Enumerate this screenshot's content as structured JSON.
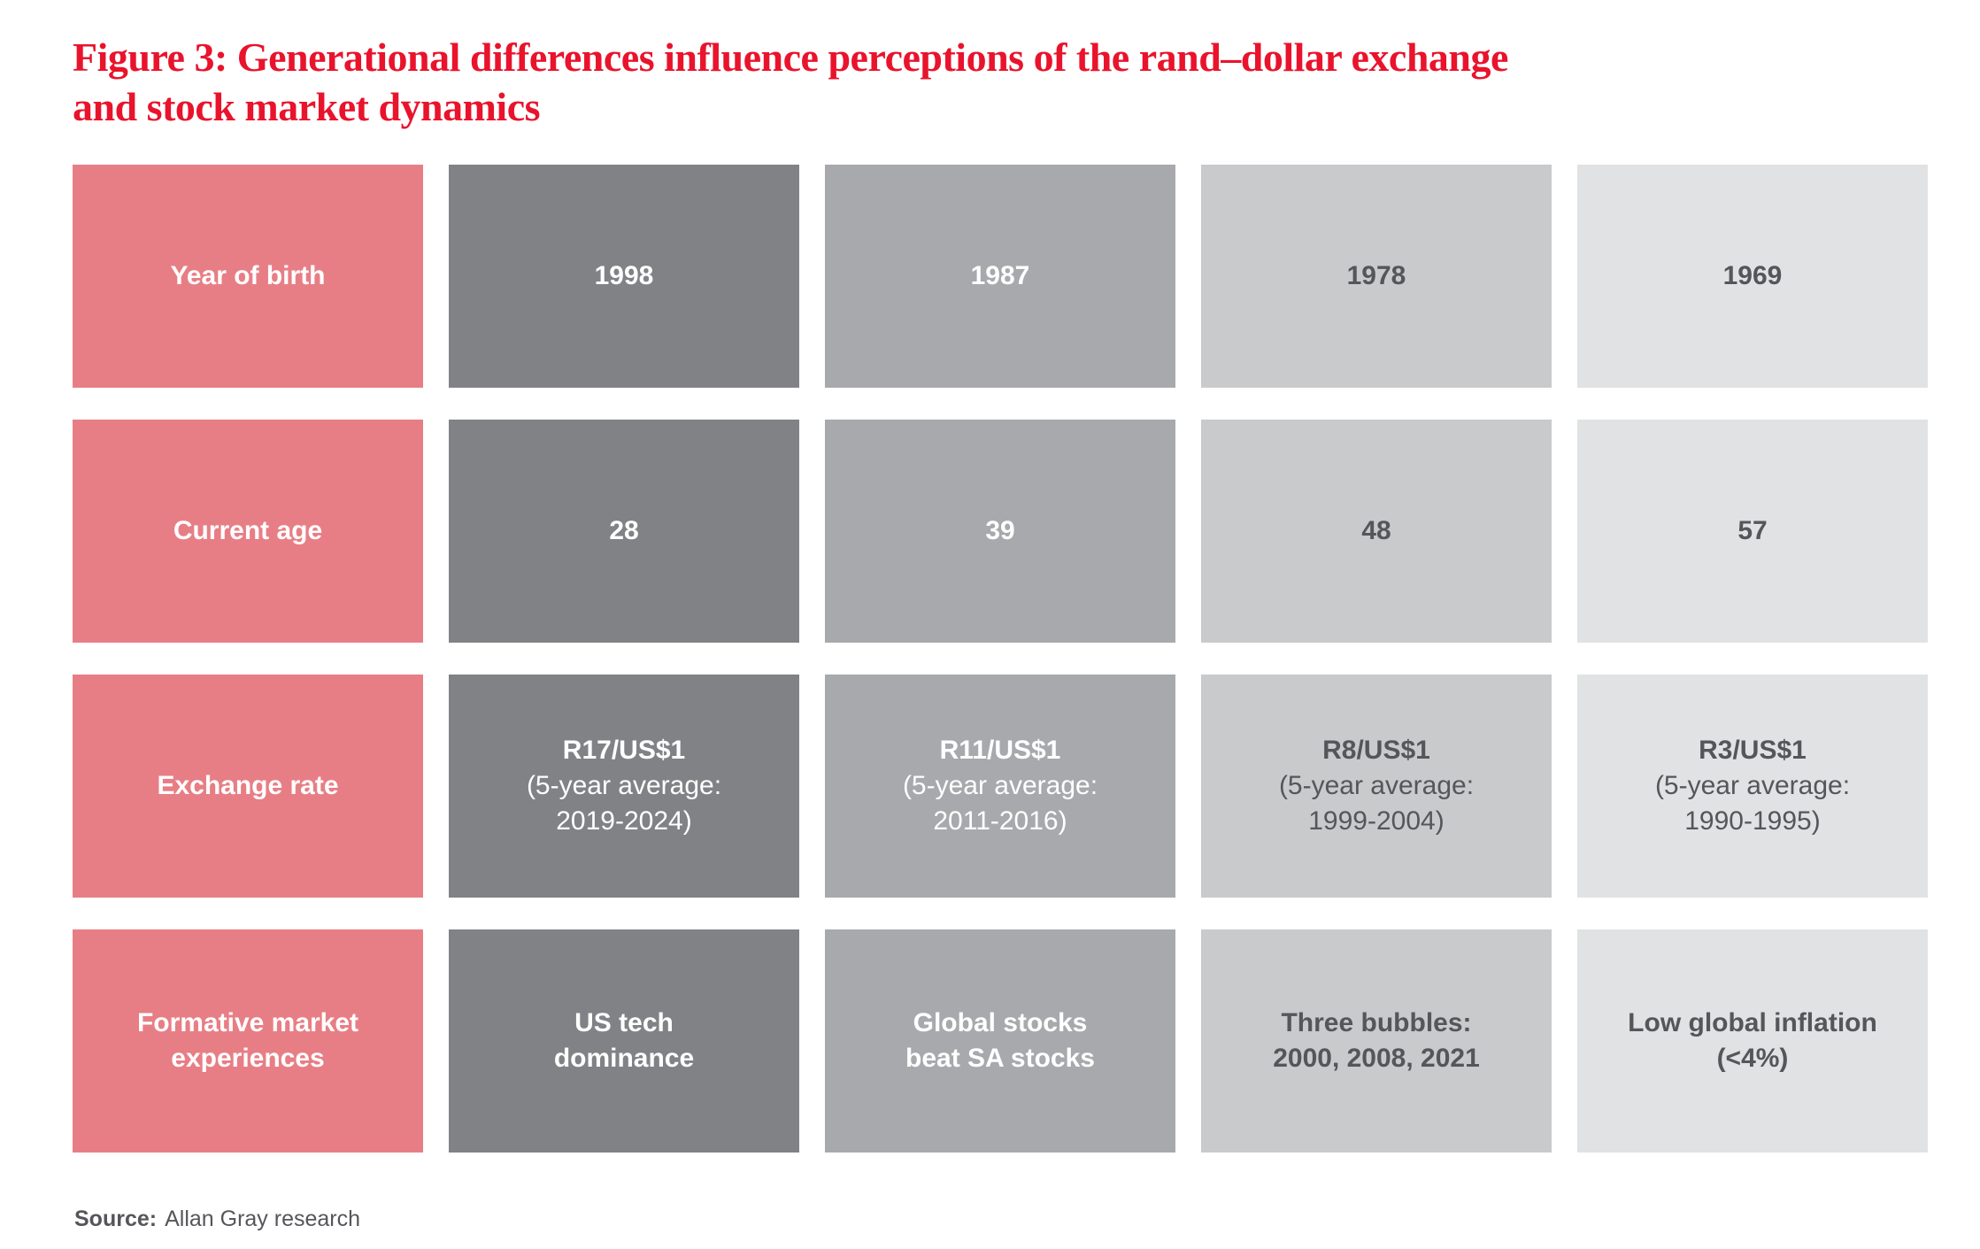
{
  "figure": {
    "title": "Figure 3: Generational differences influence perceptions of the rand–dollar exchange\nand stock market dynamics"
  },
  "colors": {
    "title-red": "#E9132C",
    "label-pink": "#E87E85",
    "col-gray-1": "#808285",
    "col-gray-2": "#A7A9AC",
    "col-gray-3": "#C8CACC",
    "col-gray-4": "#E1E2E3",
    "text-dark": "#55565A",
    "text-light": "#FFFFFF",
    "page-bg": "#FFFFFF"
  },
  "display": {
    "rows": [
      {
        "label": "Year of birth",
        "cells": [
          {
            "head": "1998"
          },
          {
            "head": "1987"
          },
          {
            "head": "1978"
          },
          {
            "head": "1969"
          }
        ]
      },
      {
        "label": "Current age",
        "cells": [
          {
            "head": "28"
          },
          {
            "head": "39"
          },
          {
            "head": "48"
          },
          {
            "head": "57"
          }
        ]
      },
      {
        "label": "Exchange rate",
        "cells": [
          {
            "head": "R17/US$1",
            "sub": "(5-year average:\n2019-2024)"
          },
          {
            "head": "R11/US$1",
            "sub": "(5-year average:\n2011-2016)"
          },
          {
            "head": "R8/US$1",
            "sub": "(5-year average:\n1999-2004)"
          },
          {
            "head": "R3/US$1",
            "sub": "(5-year average:\n1990-1995)"
          }
        ]
      },
      {
        "label": "Formative market\nexperiences",
        "cells": [
          {
            "head": "US tech\ndominance"
          },
          {
            "head": "Global stocks\nbeat SA stocks"
          },
          {
            "head": "Three bubbles:\n2000, 2008, 2021"
          },
          {
            "head": "Low global inflation\n(<4%)"
          }
        ]
      }
    ]
  },
  "source": {
    "label": "Source:",
    "text": "Allan Gray research"
  },
  "chart_data": {
    "type": "table",
    "title": "Figure 3: Generational differences influence perceptions of the rand–dollar exchange and stock market dynamics",
    "row_headers": [
      "Year of birth",
      "Current age",
      "Exchange rate",
      "Formative market experiences"
    ],
    "columns": [
      {
        "year_of_birth": 1998,
        "current_age": 28,
        "exchange_rate": "R17/US$1 (5-year average: 2019-2024)",
        "formative_market_experiences": "US tech dominance"
      },
      {
        "year_of_birth": 1987,
        "current_age": 39,
        "exchange_rate": "R11/US$1 (5-year average: 2011-2016)",
        "formative_market_experiences": "Global stocks beat SA stocks"
      },
      {
        "year_of_birth": 1978,
        "current_age": 48,
        "exchange_rate": "R8/US$1 (5-year average: 1999-2004)",
        "formative_market_experiences": "Three bubbles: 2000, 2008, 2021"
      },
      {
        "year_of_birth": 1969,
        "current_age": 57,
        "exchange_rate": "R3/US$1 (5-year average: 1990-1995)",
        "formative_market_experiences": "Low global inflation (<4%)"
      }
    ],
    "source": "Allan Gray research"
  }
}
